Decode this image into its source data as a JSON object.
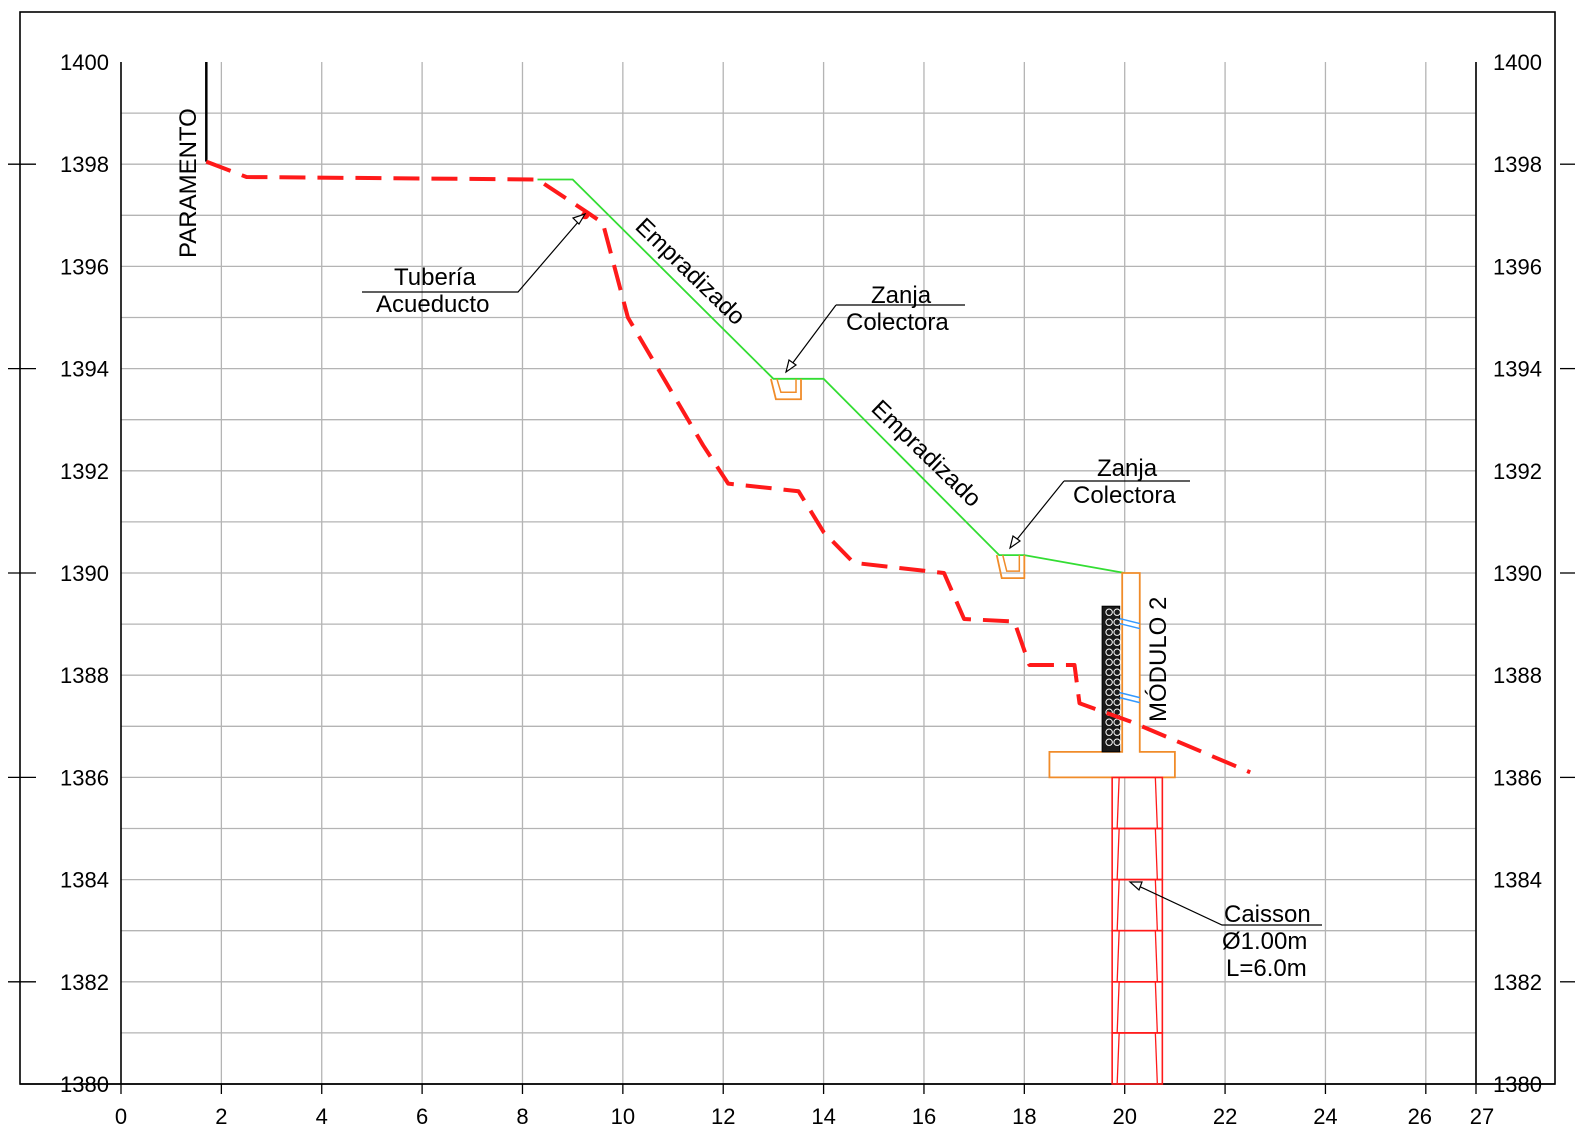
{
  "drawing": {
    "x_axis": {
      "min": 0,
      "max": 27,
      "major": [
        0,
        2,
        4,
        6,
        8,
        10,
        12,
        14,
        16,
        18,
        20,
        22,
        24,
        26,
        27
      ],
      "minor_step": 1
    },
    "y_axis": {
      "min": 1380,
      "max": 1400,
      "major": [
        1380,
        1382,
        1384,
        1386,
        1388,
        1390,
        1392,
        1394,
        1396,
        1398,
        1400
      ],
      "minor_step": 1
    },
    "x_tick_labels": [
      "0",
      "2",
      "4",
      "6",
      "8",
      "10",
      "12",
      "14",
      "16",
      "18",
      "20",
      "22",
      "24",
      "26",
      "27"
    ],
    "y_tick_labels": [
      "1380",
      "1382",
      "1384",
      "1386",
      "1388",
      "1390",
      "1392",
      "1394",
      "1396",
      "1398",
      "1400"
    ],
    "labels": {
      "paramento": "PARAMENTO",
      "tuberia_line1": "Tubería",
      "tuberia_line2": "Acueducto",
      "empradizado_1": "Empradizado",
      "empradizado_2": "Empradizado",
      "zanja1_line1": "Zanja",
      "zanja1_line2": "Colectora",
      "zanja2_line1": "Zanja",
      "zanja2_line2": "Colectora",
      "modulo": "MÓDULO 2",
      "caisson_line1": "Caisson",
      "caisson_line2": "Ø1.00m",
      "caisson_line3": "L=6.0m"
    },
    "colors": {
      "terrain": "#ff1a1a",
      "design_surface": "#33dd33",
      "structure": "#f08c2a",
      "caisson": "#ff1a1a",
      "drain": "#3399ff",
      "paramento": "#000000"
    },
    "paramento": {
      "x": 1.7,
      "y_top": 1400,
      "y_bottom": 1398.05
    },
    "terrain_profile": [
      [
        1.7,
        1398.05
      ],
      [
        2.5,
        1397.75
      ],
      [
        8.3,
        1397.7
      ],
      [
        9.3,
        1397.05
      ],
      [
        9.6,
        1396.85
      ],
      [
        10.1,
        1395.0
      ],
      [
        11.6,
        1392.5
      ],
      [
        12.1,
        1391.75
      ],
      [
        13.5,
        1391.6
      ],
      [
        14.0,
        1390.8
      ],
      [
        14.6,
        1390.2
      ],
      [
        16.4,
        1390.0
      ],
      [
        16.8,
        1389.1
      ],
      [
        17.8,
        1389.05
      ],
      [
        18.1,
        1388.2
      ],
      [
        19.0,
        1388.2
      ],
      [
        19.1,
        1387.45
      ],
      [
        20.1,
        1387.1
      ],
      [
        22.5,
        1386.1
      ]
    ],
    "design_surface": [
      [
        8.3,
        1397.7
      ],
      [
        9.0,
        1397.7
      ],
      [
        13.0,
        1393.8
      ],
      [
        14.0,
        1393.8
      ],
      [
        17.5,
        1390.35
      ],
      [
        18.0,
        1390.35
      ],
      [
        20.0,
        1390.0
      ]
    ],
    "tuberia_point": [
      9.25,
      1397.0
    ],
    "trench_1": {
      "x_left": 12.95,
      "x_right": 13.55,
      "y_top": 1393.8,
      "y_bottom": 1393.4
    },
    "trench_2": {
      "x_left": 17.45,
      "x_right": 18.0,
      "y_top": 1390.35,
      "y_bottom": 1389.9
    },
    "wall": {
      "stem_x_left": 19.95,
      "stem_x_right": 20.3,
      "stem_y_top": 1390.0,
      "footing_x_left": 18.5,
      "footing_x_right": 21.0,
      "footing_y_top": 1386.5,
      "footing_y_bottom": 1386.0,
      "gravel_x_left": 19.55,
      "gravel_x_right": 19.9,
      "gravel_y_top": 1389.35,
      "gravel_y_bottom": 1386.5
    },
    "drains": [
      1389.05,
      1387.6
    ],
    "caisson": {
      "x_center": 20.0,
      "diameter": 1.0,
      "y_top": 1386.0,
      "y_bottom": 1380.0,
      "segments": 6
    }
  }
}
